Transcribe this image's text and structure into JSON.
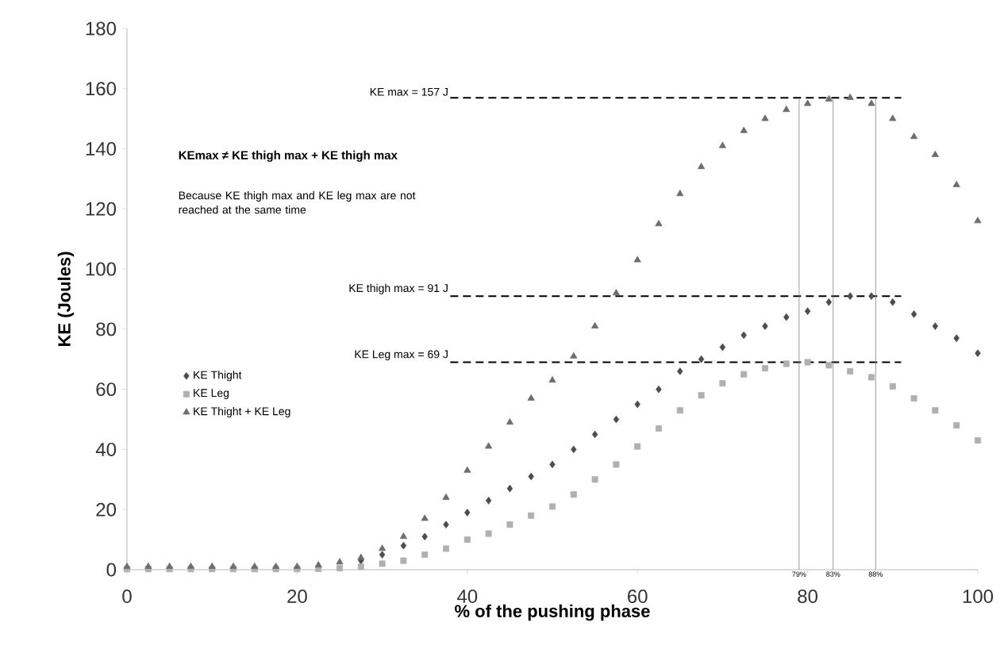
{
  "chart_data": {
    "type": "scatter",
    "xlabel": "% of the pushing phase",
    "ylabel": "KE (Joules)",
    "x": [
      0,
      2.5,
      5,
      7.5,
      10,
      12.5,
      15,
      17.5,
      20,
      22.5,
      25,
      27.5,
      30,
      32.5,
      35,
      37.5,
      40,
      42.5,
      45,
      47.5,
      50,
      52.5,
      55,
      57.5,
      60,
      62.5,
      65,
      67.5,
      70,
      72.5,
      75,
      77.5,
      80,
      82.5,
      85,
      87.5,
      90,
      92.5,
      95,
      97.5,
      100
    ],
    "series": [
      {
        "name": "KE Thight",
        "color": "#4d4d4d",
        "marker": "diamond",
        "values": [
          null,
          null,
          null,
          null,
          null,
          null,
          null,
          null,
          null,
          null,
          null,
          3,
          5,
          8,
          11,
          15,
          19,
          23,
          27,
          31,
          35,
          40,
          45,
          50,
          55,
          60,
          66,
          70,
          74,
          78,
          81,
          84,
          86,
          89,
          91,
          91,
          89,
          85,
          81,
          77,
          72
        ]
      },
      {
        "name": "KE Leg",
        "color": "#b0b0b0",
        "marker": "square",
        "values": [
          0.2,
          0.2,
          0.2,
          0.2,
          0.2,
          0.2,
          0.2,
          0.2,
          0.2,
          0.3,
          0.5,
          1,
          2,
          3,
          5,
          7,
          10,
          12,
          15,
          18,
          21,
          25,
          30,
          35,
          41,
          47,
          53,
          58,
          62,
          65,
          67,
          68.5,
          69,
          68,
          66,
          64,
          61,
          57,
          53,
          48,
          43
        ]
      },
      {
        "name": "KE Thight + KE Leg",
        "color": "#6e6e6e",
        "marker": "triangle",
        "values": [
          1,
          1,
          1,
          1,
          1,
          1,
          1,
          1,
          1,
          1.5,
          2.5,
          4,
          7,
          11,
          17,
          24,
          33,
          41,
          49,
          57,
          63,
          71,
          81,
          92,
          103,
          115,
          125,
          134,
          141,
          146,
          150,
          153,
          155,
          156.5,
          157,
          155,
          150,
          144,
          138,
          128,
          116
        ]
      }
    ],
    "xlim": [
      0,
      100
    ],
    "xticks": [
      0,
      20,
      40,
      60,
      80,
      100
    ],
    "ylim": [
      0,
      180
    ],
    "yticks": [
      0,
      20,
      40,
      60,
      80,
      100,
      120,
      140,
      160,
      180
    ],
    "grid": false,
    "legend": "left",
    "ref_lines": [
      {
        "axis": "y",
        "value": 157,
        "label": "KE max = 157 J",
        "line_style": "dashed",
        "color": "#000000"
      },
      {
        "axis": "y",
        "value": 91,
        "label": "KE thigh max = 91 J",
        "line_style": "dashed",
        "color": "#000000"
      },
      {
        "axis": "y",
        "value": 69,
        "label": "KE Leg max = 69 J",
        "line_style": "dashed",
        "color": "#000000"
      },
      {
        "axis": "x",
        "value": 79,
        "label": "79%",
        "line_style": "solid",
        "color": "#808080"
      },
      {
        "axis": "x",
        "value": 83,
        "label": "83%",
        "line_style": "solid",
        "color": "#808080"
      },
      {
        "axis": "x",
        "value": 88,
        "label": "88%",
        "line_style": "solid",
        "color": "#808080"
      }
    ],
    "annotations": [
      "KEmax ≠ KE thigh max + KE thigh max",
      "Because KE thigh max  and KE leg max are not reached at the same time"
    ]
  }
}
